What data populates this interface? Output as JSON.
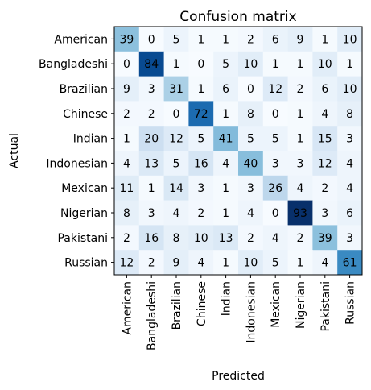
{
  "chart_data": {
    "type": "heatmap",
    "title": "Confusion matrix",
    "xlabel": "Predicted",
    "ylabel": "Actual",
    "grid": false,
    "colormap": "Blues",
    "color_low": "#f7fbff",
    "color_high": "#08306b",
    "text_color_dark": "#000000",
    "text_color_light": "#ffffff",
    "categories": [
      "American",
      "Bangladeshi",
      "Brazilian",
      "Chinese",
      "Indian",
      "Indonesian",
      "Mexican",
      "Nigerian",
      "Pakistani",
      "Russian"
    ],
    "matrix": [
      [
        39,
        0,
        5,
        1,
        1,
        2,
        6,
        9,
        1,
        10
      ],
      [
        0,
        84,
        1,
        0,
        5,
        10,
        1,
        1,
        10,
        1
      ],
      [
        9,
        3,
        31,
        1,
        6,
        0,
        12,
        2,
        6,
        10
      ],
      [
        2,
        2,
        0,
        72,
        1,
        8,
        0,
        1,
        4,
        8
      ],
      [
        1,
        20,
        12,
        5,
        41,
        5,
        5,
        1,
        15,
        3
      ],
      [
        4,
        13,
        5,
        16,
        4,
        40,
        3,
        3,
        12,
        4
      ],
      [
        11,
        1,
        14,
        3,
        1,
        3,
        26,
        4,
        2,
        4
      ],
      [
        8,
        3,
        4,
        2,
        1,
        4,
        0,
        93,
        3,
        6
      ],
      [
        2,
        16,
        8,
        10,
        13,
        2,
        4,
        2,
        39,
        3
      ],
      [
        12,
        2,
        9,
        4,
        1,
        10,
        5,
        1,
        4,
        61
      ]
    ]
  }
}
